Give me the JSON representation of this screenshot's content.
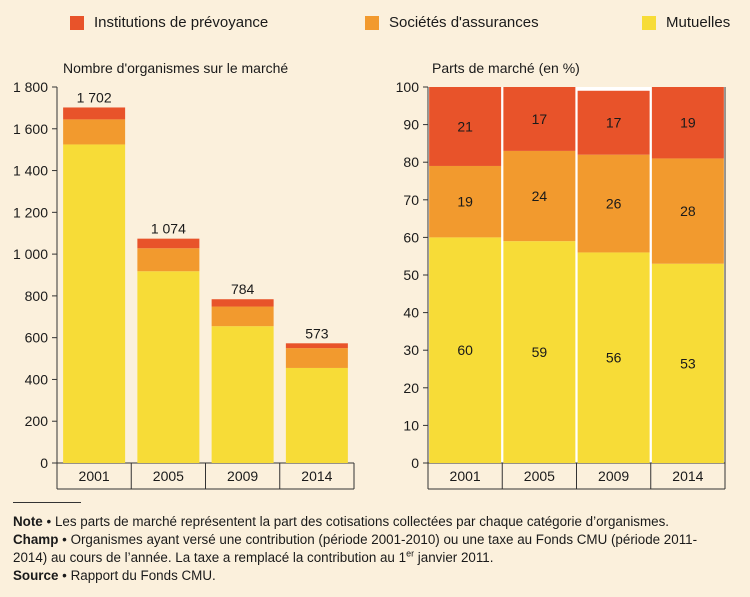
{
  "legend": [
    {
      "label": "Institutions de prévoyance",
      "color": "#e8532a"
    },
    {
      "label": "Sociétés d'assurances",
      "color": "#f29a2e"
    },
    {
      "label": "Mutuelles",
      "color": "#f7dc37"
    }
  ],
  "chart_data": [
    {
      "type": "bar",
      "stacked": true,
      "title": "Nombre d'organismes sur le marché",
      "categories": [
        "2001",
        "2005",
        "2009",
        "2014"
      ],
      "series": [
        {
          "name": "Mutuelles",
          "values": [
            1525,
            918,
            655,
            455
          ]
        },
        {
          "name": "Sociétés d'assurances",
          "values": [
            120,
            110,
            94,
            95
          ]
        },
        {
          "name": "Institutions de prévoyance",
          "values": [
            57,
            46,
            35,
            23
          ]
        }
      ],
      "totals": [
        1702,
        1074,
        784,
        573
      ],
      "total_labels": [
        "1 702",
        "1 074",
        "784",
        "573"
      ],
      "ylim": [
        0,
        1800
      ],
      "yticks": [
        0,
        200,
        400,
        600,
        800,
        1000,
        1200,
        1400,
        1600,
        1800
      ],
      "ytick_labels": [
        "0",
        "200",
        "400",
        "600",
        "800",
        "1 000",
        "1 200",
        "1 400",
        "1 600",
        "1 800"
      ],
      "grid": false
    },
    {
      "type": "bar",
      "stacked": true,
      "title": "Parts de marché (en %)",
      "categories": [
        "2001",
        "2005",
        "2009",
        "2014"
      ],
      "series": [
        {
          "name": "Mutuelles",
          "values": [
            60,
            59,
            56,
            53
          ]
        },
        {
          "name": "Sociétés d'assurances",
          "values": [
            19,
            24,
            26,
            28
          ]
        },
        {
          "name": "Institutions de prévoyance",
          "values": [
            21,
            17,
            17,
            19
          ]
        }
      ],
      "ylim": [
        0,
        100
      ],
      "yticks": [
        0,
        10,
        20,
        30,
        40,
        50,
        60,
        70,
        80,
        90,
        100
      ],
      "grid": false
    }
  ],
  "notes": {
    "note_label": "Note",
    "note_text": "Les parts de marché représentent la part des cotisations collectées par chaque catégorie d’organismes.",
    "champ_label": "Champ",
    "champ_text": "Organismes ayant versé une contribution (période 2001-2010) ou une taxe au Fonds CMU (période 2011-2014) au cours de l’année. La taxe a remplacé la contribution au 1",
    "champ_sup": "er",
    "champ_tail": " janvier 2011.",
    "source_label": "Source",
    "source_text": "Rapport du Fonds CMU.",
    "bullet": "•"
  }
}
